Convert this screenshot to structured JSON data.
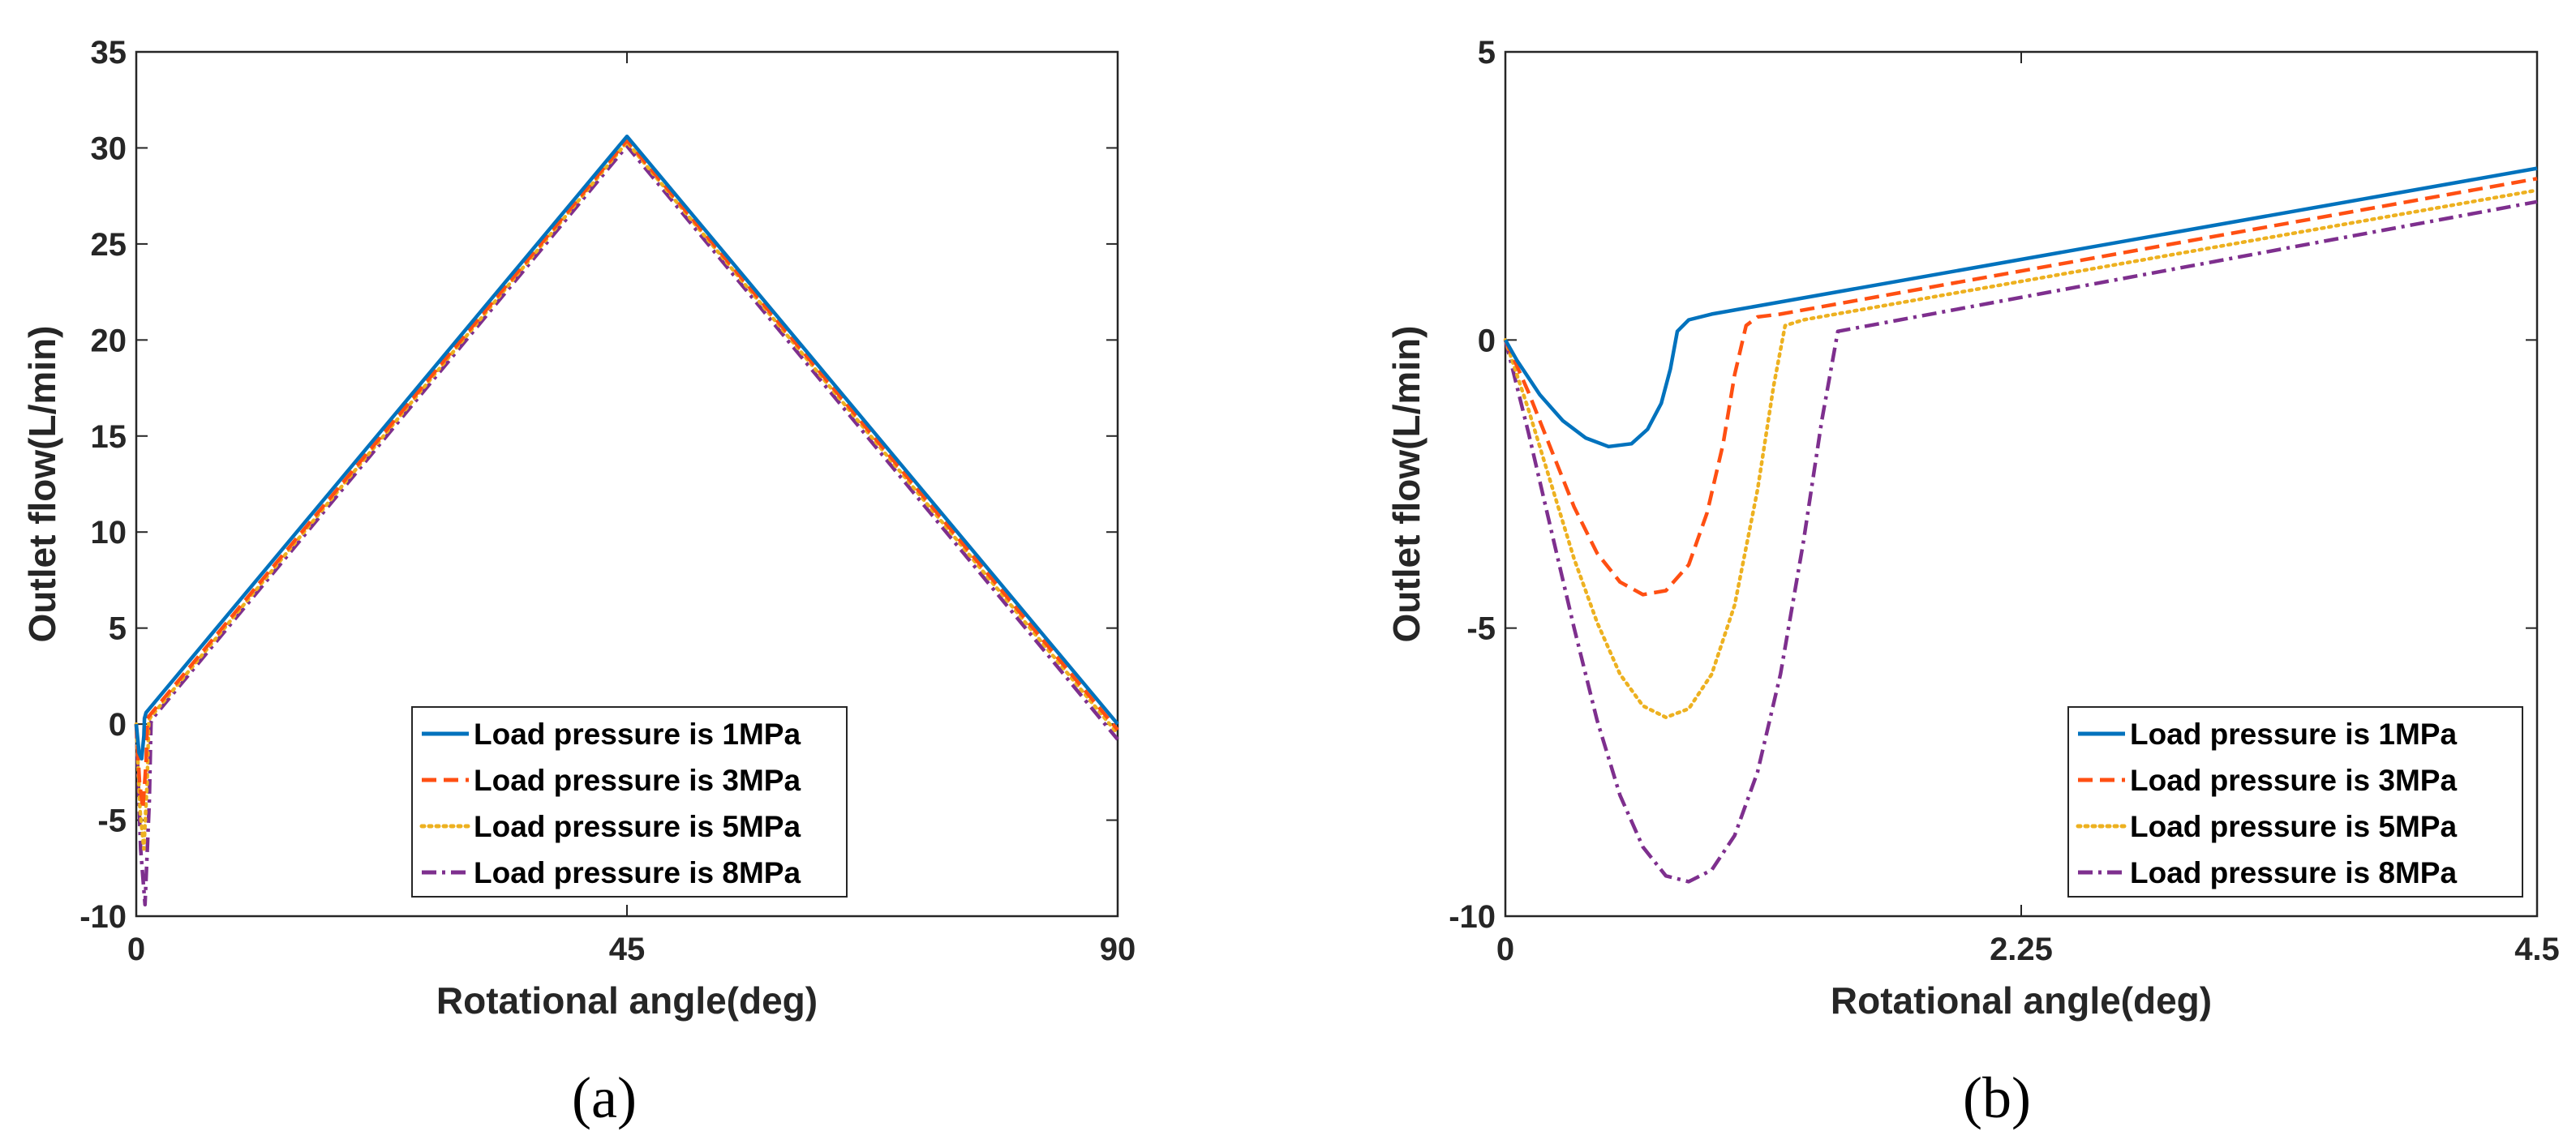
{
  "colors": {
    "series_1MPa": "#0072BD",
    "series_3MPa": "#FF4F12",
    "series_5MPa": "#EDB120",
    "series_8MPa": "#7E2F8E",
    "axis": "#262626"
  },
  "chart_data": [
    {
      "type": "line",
      "panel": "a",
      "caption": "(a)",
      "xlabel": "Rotational angle(deg)",
      "ylabel": "Outlet flow(L/min)",
      "xlim": [
        0,
        90
      ],
      "ylim": [
        -10,
        35
      ],
      "xticks": [
        0,
        45,
        90
      ],
      "xtick_labels": [
        "0",
        "45",
        "90"
      ],
      "yticks": [
        -10,
        -5,
        0,
        5,
        10,
        15,
        20,
        25,
        30,
        35
      ],
      "ytick_labels": [
        "-10",
        "-5",
        "0",
        "5",
        "10",
        "15",
        "20",
        "25",
        "30",
        "35"
      ],
      "legend_position": "bottom-right",
      "series": [
        {
          "name": "Load pressure is 1MPa",
          "dash": "solid",
          "x": [
            0,
            0.25,
            0.5,
            0.7,
            0.75,
            0.9,
            45,
            90
          ],
          "y": [
            0,
            -1.5,
            -1.8,
            -0.6,
            0.3,
            0.6,
            30.6,
            0
          ]
        },
        {
          "name": "Load pressure is 3MPa",
          "dash": "dashed",
          "x": [
            0,
            0.3,
            0.6,
            0.9,
            1.02,
            1.15,
            45,
            90
          ],
          "y": [
            0,
            -3.0,
            -4.4,
            -2.0,
            0.3,
            0.4,
            30.4,
            -0.3
          ]
        },
        {
          "name": "Load pressure is 5MPa",
          "dash": "dotted",
          "x": [
            0,
            0.35,
            0.7,
            1.0,
            1.15,
            1.3,
            45,
            90
          ],
          "y": [
            0,
            -4.5,
            -6.5,
            -3.0,
            0.2,
            0.35,
            30.3,
            -0.5
          ]
        },
        {
          "name": "Load pressure is 8MPa",
          "dash": "dashdot",
          "x": [
            0,
            0.4,
            0.8,
            1.2,
            1.35,
            1.5,
            45,
            90
          ],
          "y": [
            0,
            -6.5,
            -9.4,
            -4.0,
            0.1,
            0.3,
            30.1,
            -0.8
          ]
        }
      ]
    },
    {
      "type": "line",
      "panel": "b",
      "caption": "(b)",
      "xlabel": "Rotational angle(deg)",
      "ylabel": "Outlet flow(L/min)",
      "xlim": [
        0,
        4.5
      ],
      "ylim": [
        -10,
        5
      ],
      "xticks": [
        0,
        2.25,
        4.5
      ],
      "xtick_labels": [
        "0",
        "2.25",
        "4.5"
      ],
      "yticks": [
        -10,
        -5,
        0,
        5
      ],
      "ytick_labels": [
        "-10",
        "-5",
        "0",
        "5"
      ],
      "legend_position": "bottom-right",
      "series": [
        {
          "name": "Load pressure is 1MPa",
          "dash": "solid",
          "x": [
            0,
            0.05,
            0.15,
            0.25,
            0.35,
            0.45,
            0.55,
            0.62,
            0.68,
            0.72,
            0.75,
            0.8,
            0.9,
            1.0,
            4.5
          ],
          "y": [
            0,
            -0.35,
            -0.95,
            -1.4,
            -1.7,
            -1.85,
            -1.8,
            -1.55,
            -1.1,
            -0.5,
            0.15,
            0.35,
            0.45,
            0.52,
            2.98
          ]
        },
        {
          "name": "Load pressure is 3MPa",
          "dash": "dashed",
          "x": [
            0,
            0.1,
            0.2,
            0.3,
            0.4,
            0.5,
            0.6,
            0.7,
            0.8,
            0.88,
            0.95,
            1.0,
            1.05,
            1.1,
            1.2,
            4.5
          ],
          "y": [
            0,
            -0.9,
            -1.9,
            -2.9,
            -3.7,
            -4.2,
            -4.42,
            -4.35,
            -3.9,
            -3.0,
            -1.8,
            -0.6,
            0.25,
            0.4,
            0.45,
            2.8
          ]
        },
        {
          "name": "Load pressure is 5MPa",
          "dash": "dotted",
          "x": [
            0,
            0.1,
            0.2,
            0.3,
            0.4,
            0.5,
            0.6,
            0.7,
            0.8,
            0.9,
            1.0,
            1.1,
            1.17,
            1.22,
            1.3,
            4.5
          ],
          "y": [
            0,
            -1.2,
            -2.5,
            -3.8,
            -4.9,
            -5.8,
            -6.35,
            -6.55,
            -6.4,
            -5.8,
            -4.6,
            -2.6,
            -0.8,
            0.25,
            0.35,
            2.6
          ]
        },
        {
          "name": "Load pressure is 8MPa",
          "dash": "dashdot",
          "x": [
            0,
            0.1,
            0.2,
            0.3,
            0.4,
            0.5,
            0.6,
            0.7,
            0.8,
            0.9,
            1.0,
            1.1,
            1.2,
            1.3,
            1.38,
            1.45,
            4.5
          ],
          "y": [
            0,
            -1.6,
            -3.3,
            -5.0,
            -6.6,
            -7.9,
            -8.8,
            -9.3,
            -9.4,
            -9.2,
            -8.6,
            -7.5,
            -5.8,
            -3.5,
            -1.4,
            0.15,
            2.4
          ]
        }
      ]
    }
  ]
}
